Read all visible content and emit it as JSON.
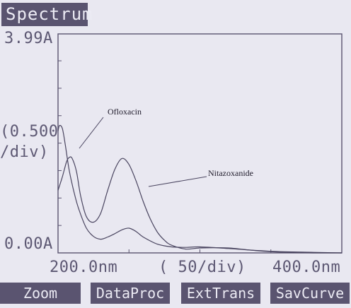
{
  "screen": {
    "title": "Spectrum",
    "y_max_label": "3.99A",
    "y_scale_label_1": "(0.500",
    "y_scale_label_2": "/div)",
    "y_min_label": "0.00A",
    "x_min_label": "200.0nm",
    "x_scale_label": "(  50/div)",
    "x_max_label": "400.0nm"
  },
  "softkeys": {
    "zoom": "Zoom",
    "dataproc": "DataProc",
    "exttrans": "ExtTrans",
    "savcurve": "SavCurve"
  },
  "annotations": {
    "ofloxacin": "Ofloxacin",
    "nitazoxanide": "Nitazoxanide"
  },
  "colors": {
    "screen_bg": "#e9e8f1",
    "key_bg": "#5a5470",
    "key_text": "#ecebf4",
    "trace": "#4a4560"
  },
  "chart_data": {
    "type": "line",
    "x_unit": "nm",
    "y_unit": "A",
    "xlim": [
      200,
      400
    ],
    "ylim": [
      0,
      3.99
    ],
    "x_div": 50,
    "y_div": 0.5,
    "series": [
      {
        "name": "Ofloxacin",
        "x": [
          200,
          201,
          203,
          205,
          208,
          212,
          215,
          220,
          225,
          230,
          235,
          240,
          245,
          250,
          255,
          260,
          270,
          280,
          290,
          300,
          320,
          350,
          380,
          400
        ],
        "y": [
          2.22,
          2.32,
          2.27,
          1.99,
          1.49,
          1.03,
          0.77,
          0.45,
          0.3,
          0.25,
          0.29,
          0.35,
          0.42,
          0.45,
          0.39,
          0.29,
          0.16,
          0.11,
          0.1,
          0.11,
          0.08,
          0.03,
          0.01,
          0.0
        ]
      },
      {
        "name": "Nitazoxanide",
        "x": [
          200,
          203,
          206,
          208,
          210,
          213,
          216,
          220,
          225,
          230,
          235,
          240,
          245,
          250,
          255,
          260,
          265,
          270,
          275,
          280,
          290,
          300,
          320,
          340,
          360,
          380,
          400
        ],
        "y": [
          1.14,
          1.38,
          1.66,
          1.74,
          1.72,
          1.48,
          1.03,
          0.66,
          0.56,
          0.72,
          1.14,
          1.52,
          1.72,
          1.61,
          1.31,
          0.94,
          0.62,
          0.38,
          0.23,
          0.14,
          0.07,
          0.09,
          0.09,
          0.04,
          0.01,
          0.0,
          0.0
        ]
      }
    ]
  }
}
